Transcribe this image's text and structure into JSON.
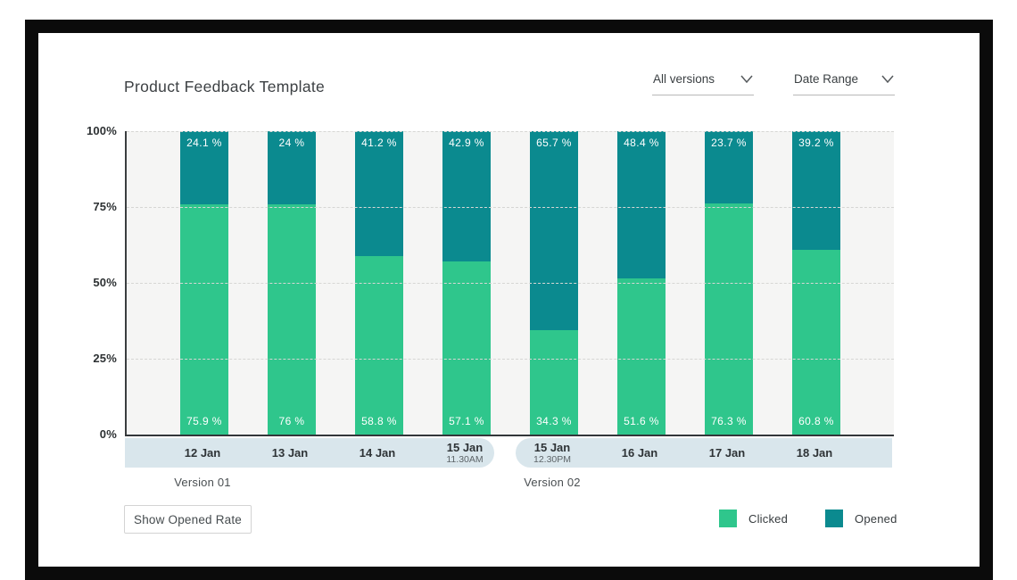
{
  "header": {
    "title": "Product Feedback Template",
    "version_filter": {
      "label": "All versions"
    },
    "date_filter": {
      "label": "Date Range"
    }
  },
  "chart_data": {
    "type": "bar",
    "stacked": true,
    "title": "Product Feedback Template",
    "y_axis": {
      "ticks": [
        "100%",
        "75%",
        "50%",
        "25%",
        "0%"
      ],
      "min": 0,
      "max": 100,
      "unit": "%"
    },
    "grid": "horizontal dashed lines every 25%",
    "categories": [
      {
        "label": "12 Jan",
        "sublabel": ""
      },
      {
        "label": "13 Jan",
        "sublabel": ""
      },
      {
        "label": "14 Jan",
        "sublabel": ""
      },
      {
        "label": "15 Jan",
        "sublabel": "11.30AM"
      },
      {
        "label": "15 Jan",
        "sublabel": "12.30PM"
      },
      {
        "label": "16 Jan",
        "sublabel": ""
      },
      {
        "label": "17 Jan",
        "sublabel": ""
      },
      {
        "label": "18 Jan",
        "sublabel": ""
      }
    ],
    "series": [
      {
        "name": "Clicked",
        "color": "#2fc68c",
        "values": [
          75.9,
          76,
          58.8,
          57.1,
          34.3,
          51.6,
          76.3,
          60.8
        ],
        "display_labels": [
          "75.9 %",
          "76 %",
          "58.8 %",
          "57.1 %",
          "34.3 %",
          "51.6 %",
          "76.3 %",
          "60.8 %"
        ]
      },
      {
        "name": "Opened",
        "color": "#0b8a8f",
        "values": [
          24.1,
          24,
          41.2,
          42.9,
          65.7,
          48.4,
          23.7,
          39.2
        ],
        "display_labels": [
          "24.1 %",
          "24 %",
          "41.2 %",
          "42.9 %",
          "65.7 %",
          "48.4 %",
          "23.7 %",
          "39.2 %"
        ]
      }
    ],
    "groups": [
      {
        "label": "Version 01",
        "category_indexes": [
          0,
          1,
          2,
          3
        ]
      },
      {
        "label": "Version 02",
        "category_indexes": [
          4,
          5,
          6,
          7
        ]
      }
    ],
    "legend": {
      "position": "bottom-right",
      "items": [
        {
          "label": "Clicked",
          "color": "#2fc68c"
        },
        {
          "label": "Opened",
          "color": "#0b8a8f"
        }
      ]
    },
    "colors": {
      "plot_background": "#f5f5f4",
      "axis_line": "#33363a",
      "x_band_background": "#d9e6ec",
      "frame": "#0b0b0b"
    }
  },
  "footer": {
    "show_opened_rate_label": "Show Opened Rate"
  }
}
